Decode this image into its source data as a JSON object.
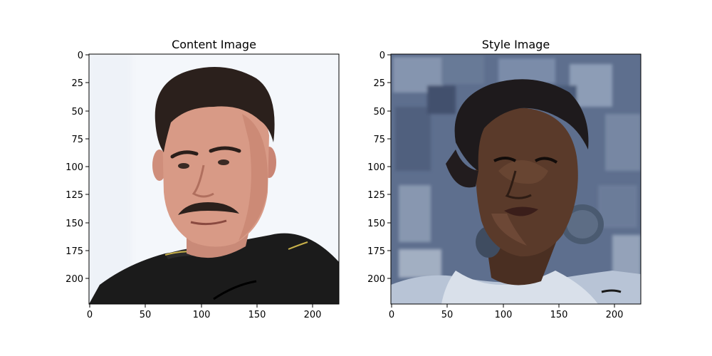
{
  "chart_data": [
    {
      "type": "image",
      "title": "Content Image",
      "xlim": [
        -0.5,
        223.5
      ],
      "ylim": [
        223.5,
        -0.5
      ],
      "xticks": [
        0,
        50,
        100,
        150,
        200
      ],
      "yticks": [
        0,
        25,
        50,
        75,
        100,
        125,
        150,
        175,
        200
      ],
      "image_description": "portrait photograph of a man with short dark hair and a mustache wearing a black polo shirt with yellow trim, on a white background",
      "colors": {
        "background": "#f4f7fb",
        "skin": "#d89a86",
        "hair": "#2b201c",
        "shirt": "#1b1b1b",
        "trim": "#c9b24a"
      }
    },
    {
      "type": "image",
      "title": "Style Image",
      "xlim": [
        -0.5,
        223.5
      ],
      "ylim": [
        223.5,
        -0.5
      ],
      "xticks": [
        0,
        50,
        100,
        150,
        200
      ],
      "yticks": [
        0,
        25,
        50,
        75,
        100,
        125,
        150,
        175,
        200
      ],
      "image_description": "painted portrait of a woman with dark skin, dark hair and large round earrings against a textured blue-gray brushstroke background",
      "colors": {
        "background": "#5e6f8e",
        "background_light": "#8a9ab3",
        "skin": "#5a3a2a",
        "hair": "#1e1a1c",
        "shirt": "#cfd7e3",
        "earring": "#4a5a70"
      }
    }
  ]
}
